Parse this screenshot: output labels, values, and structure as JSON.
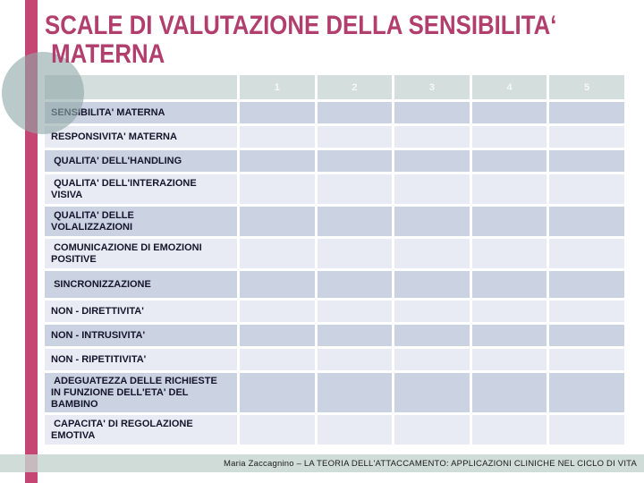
{
  "slide": {
    "title": "SCALE DI VALUTAZIONE DELLA SENSIBILITA‘\n MATERNA",
    "footer_text": "Maria Zaccagnino – LA TEORIA DELL'ATTACCAMENTO: APPLICAZIONI CLINICHE NEL CICLO DI VITA"
  },
  "colors": {
    "title": "#b13e6c",
    "accent_bar": "#c54573",
    "circle": "#90a8a8",
    "header_cell": "#d4dedc",
    "header_number": "#f4f8f8",
    "row_dark": "#cbd2e2",
    "row_light": "#e8ebf3",
    "label_text": "#15152b",
    "footer_bar": "#c6d4d0"
  },
  "table": {
    "columns": [
      "1",
      "2",
      "3",
      "4",
      "5"
    ],
    "rows": [
      "SENSIBILITA' MATERNA",
      "RESPONSIVITA' MATERNA",
      " QUALITA' DELL'HANDLING",
      " QUALITA' DELL'INTERAZIONE\nVISIVA",
      " QUALITA' DELLE\nVOLALIZZAZIONI",
      " COMUNICAZIONE DI EMOZIONI\nPOSITIVE",
      " SINCRONIZZAZIONE",
      "NON - DIRETTIVITA'",
      "NON - INTRUSIVITA'",
      "NON - RIPETITIVITA'",
      " ADEGUATEZZA DELLE RICHIESTE\nIN FUNZIONE DELL'ETA' DEL\nBAMBINO",
      " CAPACITA' DI REGOLAZIONE\nEMOTIVA"
    ]
  }
}
